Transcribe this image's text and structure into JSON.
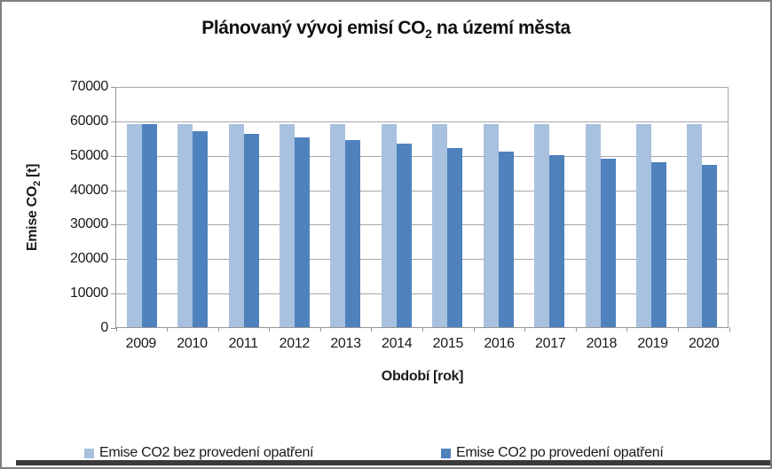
{
  "window": {
    "background": "#ffffff",
    "border_color": "#7f7f7f",
    "bottom_strip_color": "#3a3a3a"
  },
  "chart_data": {
    "type": "bar",
    "title_parts": {
      "prefix": "Plánovaný vývoj emisí CO",
      "sub": "2",
      "suffix": " na území města"
    },
    "xlabel": "Období [rok]",
    "ylabel_parts": {
      "prefix": "Emise CO",
      "sub": "2",
      "suffix": " [t]"
    },
    "categories": [
      "2009",
      "2010",
      "2011",
      "2012",
      "2013",
      "2014",
      "2015",
      "2016",
      "2017",
      "2018",
      "2019",
      "2020"
    ],
    "series": [
      {
        "key": "bez-opatreni",
        "name": "Emise CO2 bez provedení opatření",
        "color": "#a8c1de",
        "values": [
          59000,
          59000,
          59000,
          59000,
          59000,
          59000,
          59000,
          59000,
          59000,
          59000,
          59000,
          59000
        ]
      },
      {
        "key": "po-opatreni",
        "name": "Emise CO2 po provedení opatření",
        "color": "#4f81bd",
        "values": [
          59000,
          57000,
          56000,
          55200,
          54300,
          53200,
          52000,
          51000,
          50000,
          49000,
          48000,
          47200
        ]
      }
    ],
    "ylim": [
      0,
      70000
    ],
    "ytick_step": 10000,
    "ytick_labels": [
      "70000",
      "60000",
      "50000",
      "40000",
      "30000",
      "20000",
      "10000",
      "0"
    ],
    "grid": "horizontal-only",
    "legend_position": "bottom",
    "axis_color": "#969696",
    "gridline_color": "#a6a6a6"
  }
}
